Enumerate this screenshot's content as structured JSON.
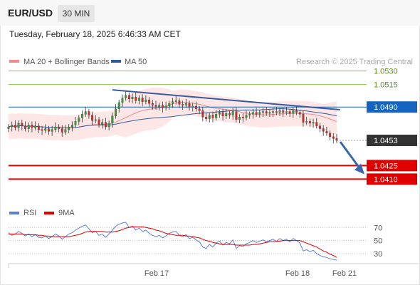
{
  "header": {
    "symbol": "EUR/USD",
    "timeframe": "30 MIN",
    "datetime": "Tuesday, February 18, 2025 6:46:33 AM CET"
  },
  "chart_data": [
    {
      "type": "candlestick",
      "title": "EUR/USD",
      "legend": [
        {
          "name": "MA 20 + Bollinger Bands",
          "color": "#f08a8a"
        },
        {
          "name": "MA 50",
          "color": "#2f5b9b"
        }
      ],
      "attribution": "Research © 2025 Trading Central",
      "ylim": [
        1.0385,
        1.0555
      ],
      "levels": [
        {
          "value": 1.053,
          "label": "1.0530",
          "kind": "resistance-target",
          "color": "#8bc34a"
        },
        {
          "value": 1.0515,
          "label": "1.0515",
          "kind": "resistance-target",
          "color": "#8bc34a"
        },
        {
          "value": 1.049,
          "label": "1.0490",
          "kind": "pivot",
          "color": "#1565c0"
        },
        {
          "value": 1.0453,
          "label": "1.0453",
          "kind": "last-price",
          "color": "#333333"
        },
        {
          "value": 1.0425,
          "label": "1.0425",
          "kind": "support-target",
          "color": "#e00000"
        },
        {
          "value": 1.041,
          "label": "1.0410",
          "kind": "support-target",
          "color": "#e00000"
        }
      ],
      "x_ticks": [
        "Feb 17",
        "Feb 18",
        "Feb 21"
      ],
      "closes": [
        1.0468,
        1.047,
        1.0467,
        1.0472,
        1.0469,
        1.0466,
        1.047,
        1.0467,
        1.0469,
        1.0465,
        1.0464,
        1.0466,
        1.0463,
        1.0465,
        1.0468,
        1.0466,
        1.0462,
        1.0465,
        1.0468,
        1.047,
        1.0474,
        1.0478,
        1.0482,
        1.0485,
        1.0481,
        1.0475,
        1.0476,
        1.0471,
        1.0473,
        1.0468,
        1.0472,
        1.048,
        1.0488,
        1.0495,
        1.05,
        1.0503,
        1.0499,
        1.0501,
        1.0497,
        1.05,
        1.0496,
        1.0498,
        1.0494,
        1.0492,
        1.049,
        1.0492,
        1.0489,
        1.0491,
        1.0494,
        1.0496,
        1.0497,
        1.0493,
        1.0492,
        1.0494,
        1.049,
        1.0491,
        1.0488,
        1.0486,
        1.0479,
        1.0477,
        1.0481,
        1.0478,
        1.0482,
        1.0484,
        1.048,
        1.0483,
        1.0481,
        1.0485,
        1.0476,
        1.0479,
        1.0478,
        1.0481,
        1.0482,
        1.0484,
        1.0482,
        1.0484,
        1.0485,
        1.0483,
        1.0484,
        1.0485,
        1.0484,
        1.0486,
        1.0484,
        1.0485,
        1.0483,
        1.0486,
        1.0484,
        1.0482,
        1.0473,
        1.0474,
        1.0472,
        1.0473,
        1.0469,
        1.0466,
        1.0463,
        1.0461,
        1.0457,
        1.0455,
        1.0453
      ],
      "forecast_arrow": {
        "from": 1.0453,
        "to": 1.0417
      },
      "trendline": {
        "from_index": 31,
        "from": 1.0509,
        "to_index": 99,
        "to": 1.0487
      }
    },
    {
      "type": "line",
      "title": "RSI",
      "legend": [
        {
          "name": "RSI",
          "color": "#5b7fd6"
        },
        {
          "name": "9MA",
          "color": "#e00000"
        }
      ],
      "y_ticks": [
        70,
        50,
        30
      ],
      "ylim": [
        20,
        78
      ],
      "series": [
        {
          "name": "RSI",
          "values": [
            62,
            58,
            60,
            64,
            61,
            57,
            60,
            56,
            59,
            55,
            54,
            57,
            53,
            56,
            60,
            57,
            52,
            56,
            60,
            62,
            66,
            69,
            72,
            74,
            68,
            62,
            64,
            58,
            60,
            55,
            60,
            66,
            72,
            75,
            77,
            78,
            70,
            72,
            66,
            69,
            64,
            66,
            61,
            58,
            56,
            58,
            54,
            57,
            61,
            63,
            64,
            58,
            56,
            59,
            53,
            55,
            51,
            48,
            40,
            38,
            44,
            40,
            46,
            49,
            43,
            47,
            45,
            51,
            38,
            42,
            41,
            45,
            47,
            50,
            47,
            49,
            51,
            48,
            50,
            52,
            49,
            53,
            50,
            52,
            48,
            53,
            50,
            46,
            34,
            36,
            33,
            35,
            30,
            27,
            25,
            24,
            22,
            21,
            20
          ]
        },
        {
          "name": "9MA",
          "values": [
            60,
            60,
            60,
            60,
            60,
            59,
            59,
            59,
            59,
            58,
            58,
            57,
            57,
            56,
            56,
            56,
            56,
            56,
            56,
            57,
            58,
            59,
            61,
            63,
            64,
            64,
            64,
            64,
            64,
            63,
            63,
            63,
            64,
            65,
            67,
            69,
            70,
            71,
            71,
            71,
            71,
            70,
            69,
            68,
            66,
            65,
            63,
            61,
            60,
            59,
            58,
            58,
            58,
            57,
            57,
            56,
            55,
            54,
            52,
            50,
            49,
            47,
            46,
            45,
            44,
            44,
            44,
            44,
            43,
            43,
            43,
            43,
            43,
            44,
            44,
            45,
            46,
            47,
            48,
            48,
            49,
            49,
            50,
            50,
            50,
            50,
            50,
            50,
            48,
            46,
            44,
            42,
            40,
            37,
            34,
            32,
            29,
            27,
            24
          ]
        }
      ]
    }
  ]
}
